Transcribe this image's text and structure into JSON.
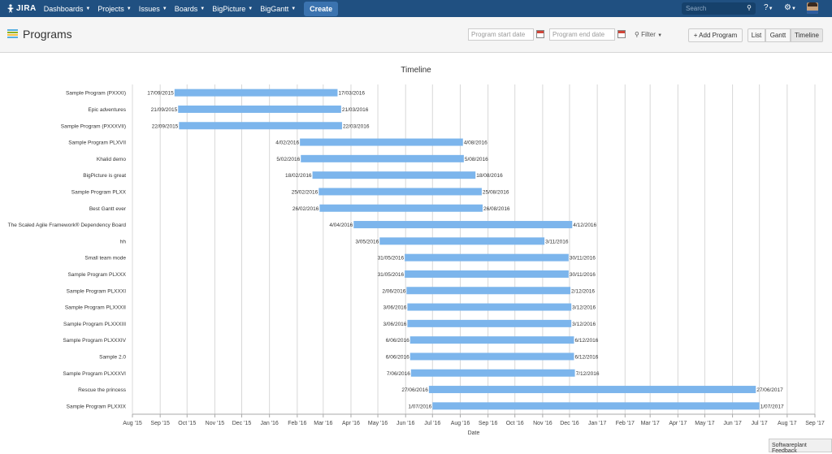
{
  "nav": {
    "logo": "JIRA",
    "items": [
      "Dashboards",
      "Projects",
      "Issues",
      "Boards",
      "BigPicture",
      "BigGantt"
    ],
    "create": "Create",
    "search_placeholder": "Search"
  },
  "page": {
    "title": "Programs",
    "start_placeholder": "Program start date",
    "end_placeholder": "Program end date",
    "filter": "Filter",
    "add_program": "+ Add Program",
    "views": [
      "List",
      "Gantt",
      "Timeline"
    ],
    "active_view": "Timeline"
  },
  "chart_data": {
    "type": "bar",
    "orientation": "horizontal-gantt",
    "title": "Timeline",
    "xlabel": "Date",
    "x_range": [
      "2015-08-01",
      "2017-09-01"
    ],
    "x_ticks": [
      "Aug '15",
      "Sep '15",
      "Oct '15",
      "Nov '15",
      "Dec '15",
      "Jan '16",
      "Feb '16",
      "Mar '16",
      "Apr '16",
      "May '16",
      "Jun '16",
      "Jul '16",
      "Aug '16",
      "Sep '16",
      "Oct '16",
      "Nov '16",
      "Dec '16",
      "Jan '17",
      "Feb '17",
      "Mar '17",
      "Apr '17",
      "May '17",
      "Jun '17",
      "Jul '17",
      "Aug '17",
      "Sep '17"
    ],
    "bar_color": "#7cb5ec",
    "tasks": [
      {
        "name": "Sample Program (PXXXI)",
        "start": "17/09/2015",
        "end": "17/03/2016"
      },
      {
        "name": "Epic adventures",
        "start": "21/09/2015",
        "end": "21/03/2016"
      },
      {
        "name": "Sample Program (PXXXVII)",
        "start": "22/09/2015",
        "end": "22/03/2016"
      },
      {
        "name": "Sample Program PLXVII",
        "start": "4/02/2016",
        "end": "4/08/2016"
      },
      {
        "name": "Khalid demo",
        "start": "5/02/2016",
        "end": "5/08/2016"
      },
      {
        "name": "BigPicture is great",
        "start": "18/02/2016",
        "end": "18/08/2016"
      },
      {
        "name": "Sample Program PLXX",
        "start": "25/02/2016",
        "end": "25/08/2016"
      },
      {
        "name": "Best Gantt ever",
        "start": "26/02/2016",
        "end": "26/08/2016"
      },
      {
        "name": "The Scaled Agile Framework® Dependency Board",
        "start": "4/04/2016",
        "end": "4/12/2016"
      },
      {
        "name": "hh",
        "start": "3/05/2016",
        "end": "3/11/2016"
      },
      {
        "name": "Small team mode",
        "start": "31/05/2016",
        "end": "30/11/2016"
      },
      {
        "name": "Sample Program PLXXX",
        "start": "31/05/2016",
        "end": "30/11/2016"
      },
      {
        "name": "Sample Program PLXXXI",
        "start": "2/06/2016",
        "end": "2/12/2016"
      },
      {
        "name": "Sample Program PLXXXII",
        "start": "3/06/2016",
        "end": "3/12/2016"
      },
      {
        "name": "Sample Program PLXXXIII",
        "start": "3/06/2016",
        "end": "3/12/2016"
      },
      {
        "name": "Sample Program PLXXXIV",
        "start": "6/06/2016",
        "end": "6/12/2016"
      },
      {
        "name": "Sample 2.0",
        "start": "6/06/2016",
        "end": "6/12/2016"
      },
      {
        "name": "Sample Program PLXXXVI",
        "start": "7/06/2016",
        "end": "7/12/2016"
      },
      {
        "name": "Rescue the princess",
        "start": "27/06/2016",
        "end": "27/06/2017"
      },
      {
        "name": "Sample Program PLXXIX",
        "start": "1/07/2016",
        "end": "1/07/2017"
      }
    ]
  },
  "feedback": "Softwareplant Feedback"
}
